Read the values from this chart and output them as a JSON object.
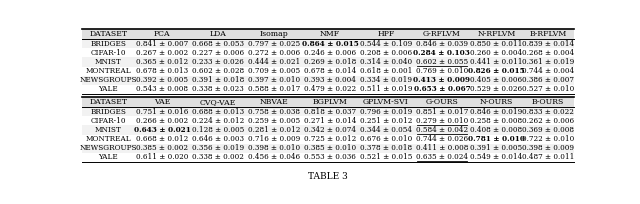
{
  "title": "TABLE 3",
  "top_header": [
    "DATASET",
    "PCA",
    "LDA",
    "Isomap",
    "NMF",
    "HPF",
    "G-RFLVM",
    "N-RFLVM",
    "B-RFLVM"
  ],
  "bottom_header": [
    "DATASET",
    "VAE",
    "CVQ-VAE",
    "NBVAE",
    "BGPLVM",
    "GPLVM-SVI",
    "G-OURS",
    "N-OURS",
    "B-OURS"
  ],
  "top_rows": [
    [
      "BRIDGES",
      "0.841 ± 0.007",
      "0.668 ± 0.053",
      "0.797 ± 0.025",
      "0.864 ± 0.015",
      "0.544 ± 0.109",
      "0.846 ± 0.039",
      "0.850 ± 0.011",
      "0.839 ± 0.014"
    ],
    [
      "CIFAR-10",
      "0.267 ± 0.002",
      "0.227 ± 0.006",
      "0.272 ± 0.006",
      "0.246 ± 0.006",
      "0.208 ± 0.006",
      "0.284 ± 0.103",
      "0.260 ± 0.004",
      "0.268 ± 0.004"
    ],
    [
      "MNIST",
      "0.365 ± 0.012",
      "0.233 ± 0.026",
      "0.444 ± 0.021",
      "0.269 ± 0.018",
      "0.314 ± 0.040",
      "0.602 ± 0.055",
      "0.441 ± 0.011",
      "0.361 ± 0.019"
    ],
    [
      "MONTREAL",
      "0.678 ± 0.013",
      "0.602 ± 0.028",
      "0.709 ± 0.005",
      "0.678 ± 0.014",
      "0.618 ± 0.001",
      "0.769 ± 0.010",
      "0.826 ± 0.015",
      "0.744 ± 0.004"
    ],
    [
      "NEWSGROUPS",
      "0.392 ± 0.005",
      "0.391 ± 0.018",
      "0.397 ± 0.010",
      "0.393 ± 0.004",
      "0.334 ± 0.019",
      "0.413 ± 0.009",
      "0.405 ± 0.006",
      "0.386 ± 0.007"
    ],
    [
      "YALE",
      "0.543 ± 0.008",
      "0.338 ± 0.023",
      "0.588 ± 0.017",
      "0.479 ± 0.022",
      "0.511 ± 0.019",
      "0.653 ± 0.067",
      "0.529 ± 0.026",
      "0.527 ± 0.010"
    ]
  ],
  "bottom_rows": [
    [
      "BRIDGES",
      "0.751 ± 0.016",
      "0.688 ± 0.013",
      "0.758 ± 0.038",
      "0.818 ± 0.037",
      "0.796 ± 0.019",
      "0.851 ± 0.017",
      "0.846 ± 0.019",
      "0.833 ± 0.022"
    ],
    [
      "CIFAR-10",
      "0.266 ± 0.002",
      "0.224 ± 0.012",
      "0.259 ± 0.005",
      "0.271 ± 0.014",
      "0.251 ± 0.012",
      "0.279 ± 0.010",
      "0.258 ± 0.008",
      "0.262 ± 0.006"
    ],
    [
      "MNIST",
      "0.643 ± 0.021",
      "0.128 ± 0.005",
      "0.281 ± 0.012",
      "0.342 ± 0.074",
      "0.344 ± 0.054",
      "0.584 ± 0.042",
      "0.408 ± 0.008",
      "0.369 ± 0.008"
    ],
    [
      "MONTREAL",
      "0.668 ± 0.012",
      "0.646 ± 0.003",
      "0.716 ± 0.009",
      "0.725 ± 0.012",
      "0.676 ± 0.010",
      "0.744 ± 0.026",
      "0.781 ± 0.010",
      "0.722 ± 0.010"
    ],
    [
      "NEWSGROUPS",
      "0.385 ± 0.002",
      "0.356 ± 0.019",
      "0.398 ± 0.010",
      "0.385 ± 0.010",
      "0.378 ± 0.018",
      "0.411 ± 0.008",
      "0.391 ± 0.005",
      "0.398 ± 0.009"
    ],
    [
      "YALE",
      "0.611 ± 0.020",
      "0.338 ± 0.002",
      "0.456 ± 0.046",
      "0.553 ± 0.036",
      "0.521 ± 0.015",
      "0.635 ± 0.024",
      "0.549 ± 0.014",
      "0.487 ± 0.011"
    ]
  ],
  "bold_top": [
    [
      false,
      false,
      false,
      false,
      true,
      false,
      false,
      false,
      false
    ],
    [
      false,
      false,
      false,
      false,
      false,
      false,
      true,
      false,
      false
    ],
    [
      false,
      false,
      false,
      false,
      false,
      false,
      false,
      false,
      false
    ],
    [
      false,
      false,
      false,
      false,
      false,
      false,
      false,
      true,
      false
    ],
    [
      false,
      false,
      false,
      false,
      false,
      false,
      true,
      false,
      false
    ],
    [
      false,
      false,
      false,
      false,
      false,
      false,
      true,
      false,
      false
    ]
  ],
  "underline_top": [
    [
      false,
      false,
      false,
      false,
      false,
      false,
      false,
      false,
      false
    ],
    [
      false,
      false,
      false,
      false,
      false,
      false,
      false,
      false,
      false
    ],
    [
      false,
      false,
      false,
      false,
      false,
      false,
      true,
      false,
      false
    ],
    [
      false,
      false,
      false,
      false,
      false,
      false,
      false,
      false,
      false
    ],
    [
      false,
      false,
      false,
      false,
      false,
      false,
      false,
      false,
      false
    ],
    [
      false,
      false,
      false,
      false,
      false,
      false,
      false,
      false,
      false
    ]
  ],
  "bold_bottom": [
    [
      false,
      false,
      false,
      false,
      false,
      false,
      false,
      false,
      false
    ],
    [
      false,
      false,
      false,
      false,
      false,
      false,
      false,
      false,
      false
    ],
    [
      false,
      true,
      false,
      false,
      false,
      false,
      false,
      false,
      false
    ],
    [
      false,
      false,
      false,
      false,
      false,
      false,
      false,
      true,
      false
    ],
    [
      false,
      false,
      false,
      false,
      false,
      false,
      false,
      false,
      false
    ],
    [
      false,
      false,
      false,
      false,
      false,
      false,
      false,
      false,
      false
    ]
  ],
  "underline_bottom": [
    [
      false,
      false,
      false,
      false,
      false,
      false,
      false,
      false,
      false
    ],
    [
      false,
      false,
      false,
      false,
      false,
      false,
      true,
      false,
      false
    ],
    [
      false,
      false,
      false,
      false,
      false,
      false,
      true,
      false,
      false
    ],
    [
      false,
      false,
      false,
      false,
      false,
      false,
      false,
      false,
      false
    ],
    [
      false,
      false,
      false,
      false,
      false,
      false,
      false,
      false,
      false
    ],
    [
      false,
      false,
      false,
      false,
      false,
      false,
      true,
      false,
      false
    ]
  ],
  "fig_width": 6.4,
  "fig_height": 2.04,
  "dpi": 100,
  "header_bg": "#e0e0e0",
  "row_bg_odd": "#f2f2f2",
  "row_bg_even": "#ffffff",
  "font_size": 5.2,
  "header_font_size": 5.6
}
